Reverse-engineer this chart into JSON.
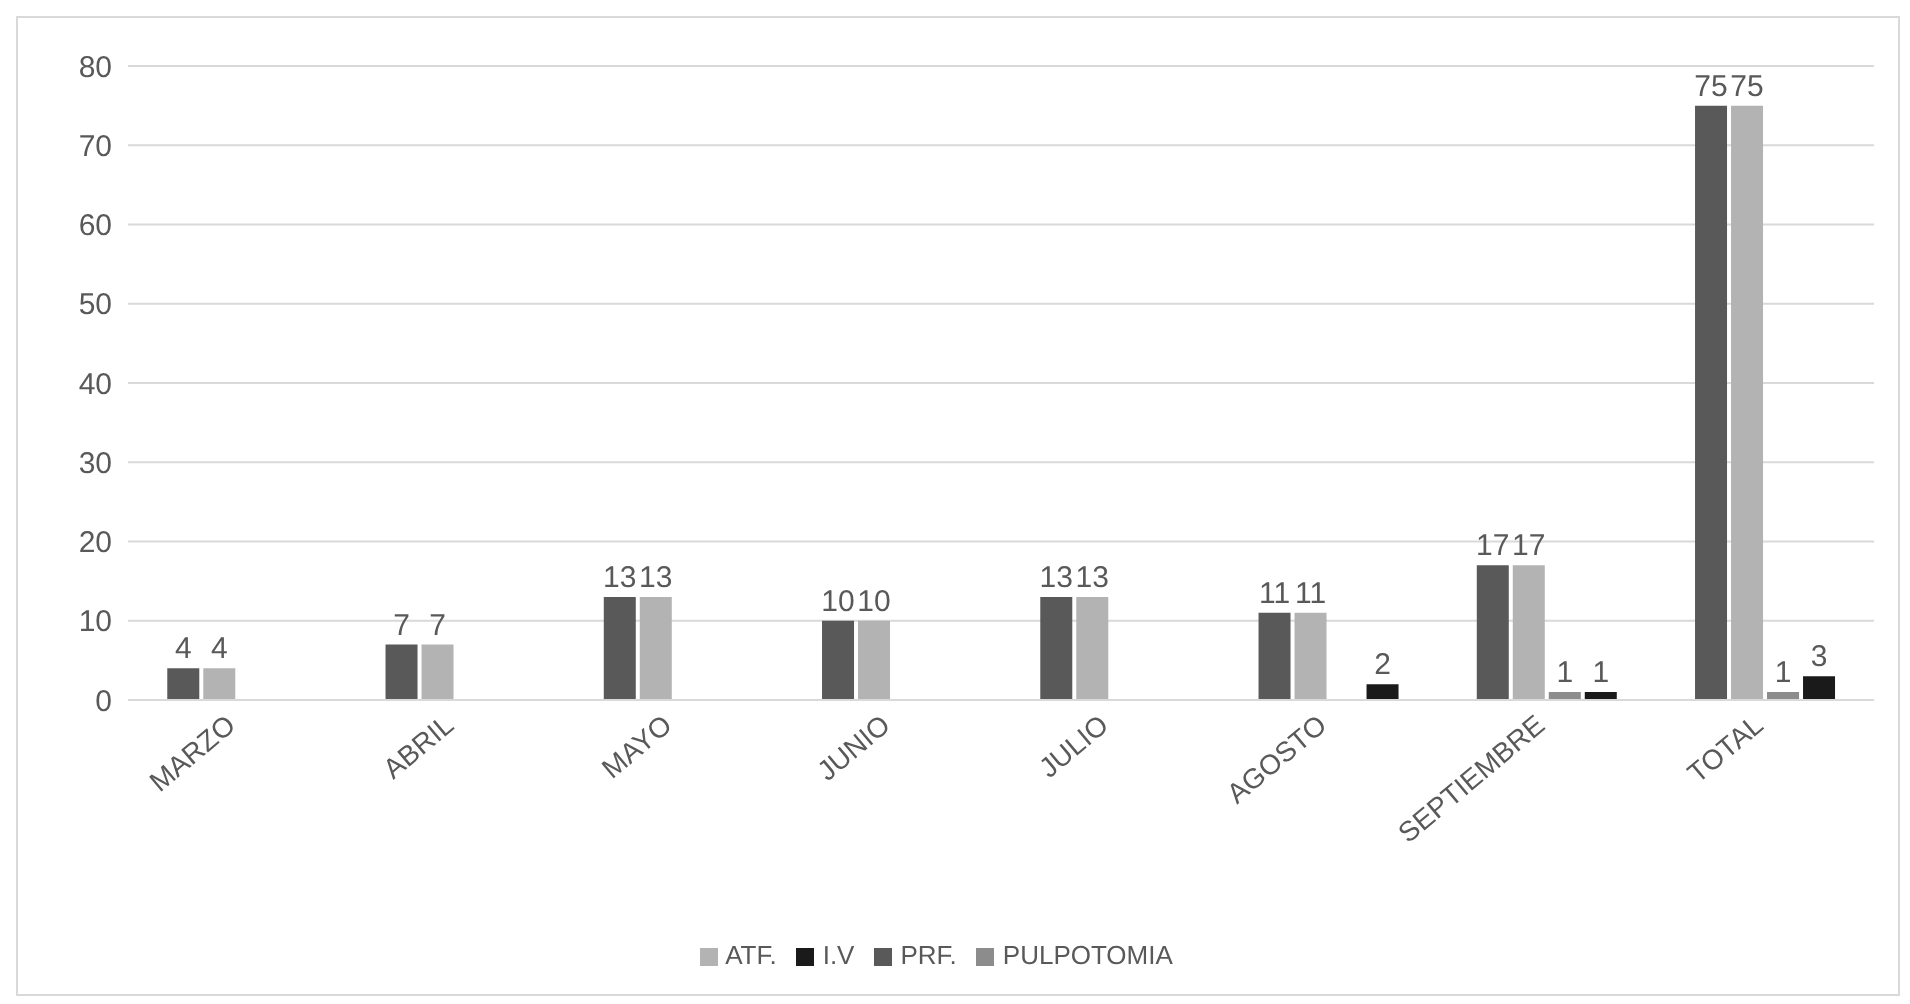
{
  "chart_data": {
    "type": "bar",
    "categories": [
      "MARZO",
      "ABRIL",
      "MAYO",
      "JUNIO",
      "JULIO",
      "AGOSTO",
      "SEPTIEMBRE",
      "TOTAL"
    ],
    "series": [
      {
        "name": "PRF.",
        "color": "#595959",
        "values": [
          4,
          7,
          13,
          10,
          13,
          11,
          17,
          75
        ]
      },
      {
        "name": "ATF.",
        "color": "#b3b3b3",
        "values": [
          4,
          7,
          13,
          10,
          13,
          11,
          17,
          75
        ]
      },
      {
        "name": "PULPOTOMIA",
        "color": "#8c8c8c",
        "values": [
          null,
          null,
          null,
          null,
          null,
          null,
          1,
          1
        ]
      },
      {
        "name": "I.V",
        "color": "#1a1a1a",
        "values": [
          null,
          null,
          null,
          null,
          null,
          2,
          1,
          3
        ]
      }
    ],
    "ylim": [
      0,
      80
    ],
    "yticks": [
      0,
      10,
      20,
      30,
      40,
      50,
      60,
      70,
      80
    ],
    "grid": "y",
    "legend": "bottom",
    "data_labels": true
  }
}
